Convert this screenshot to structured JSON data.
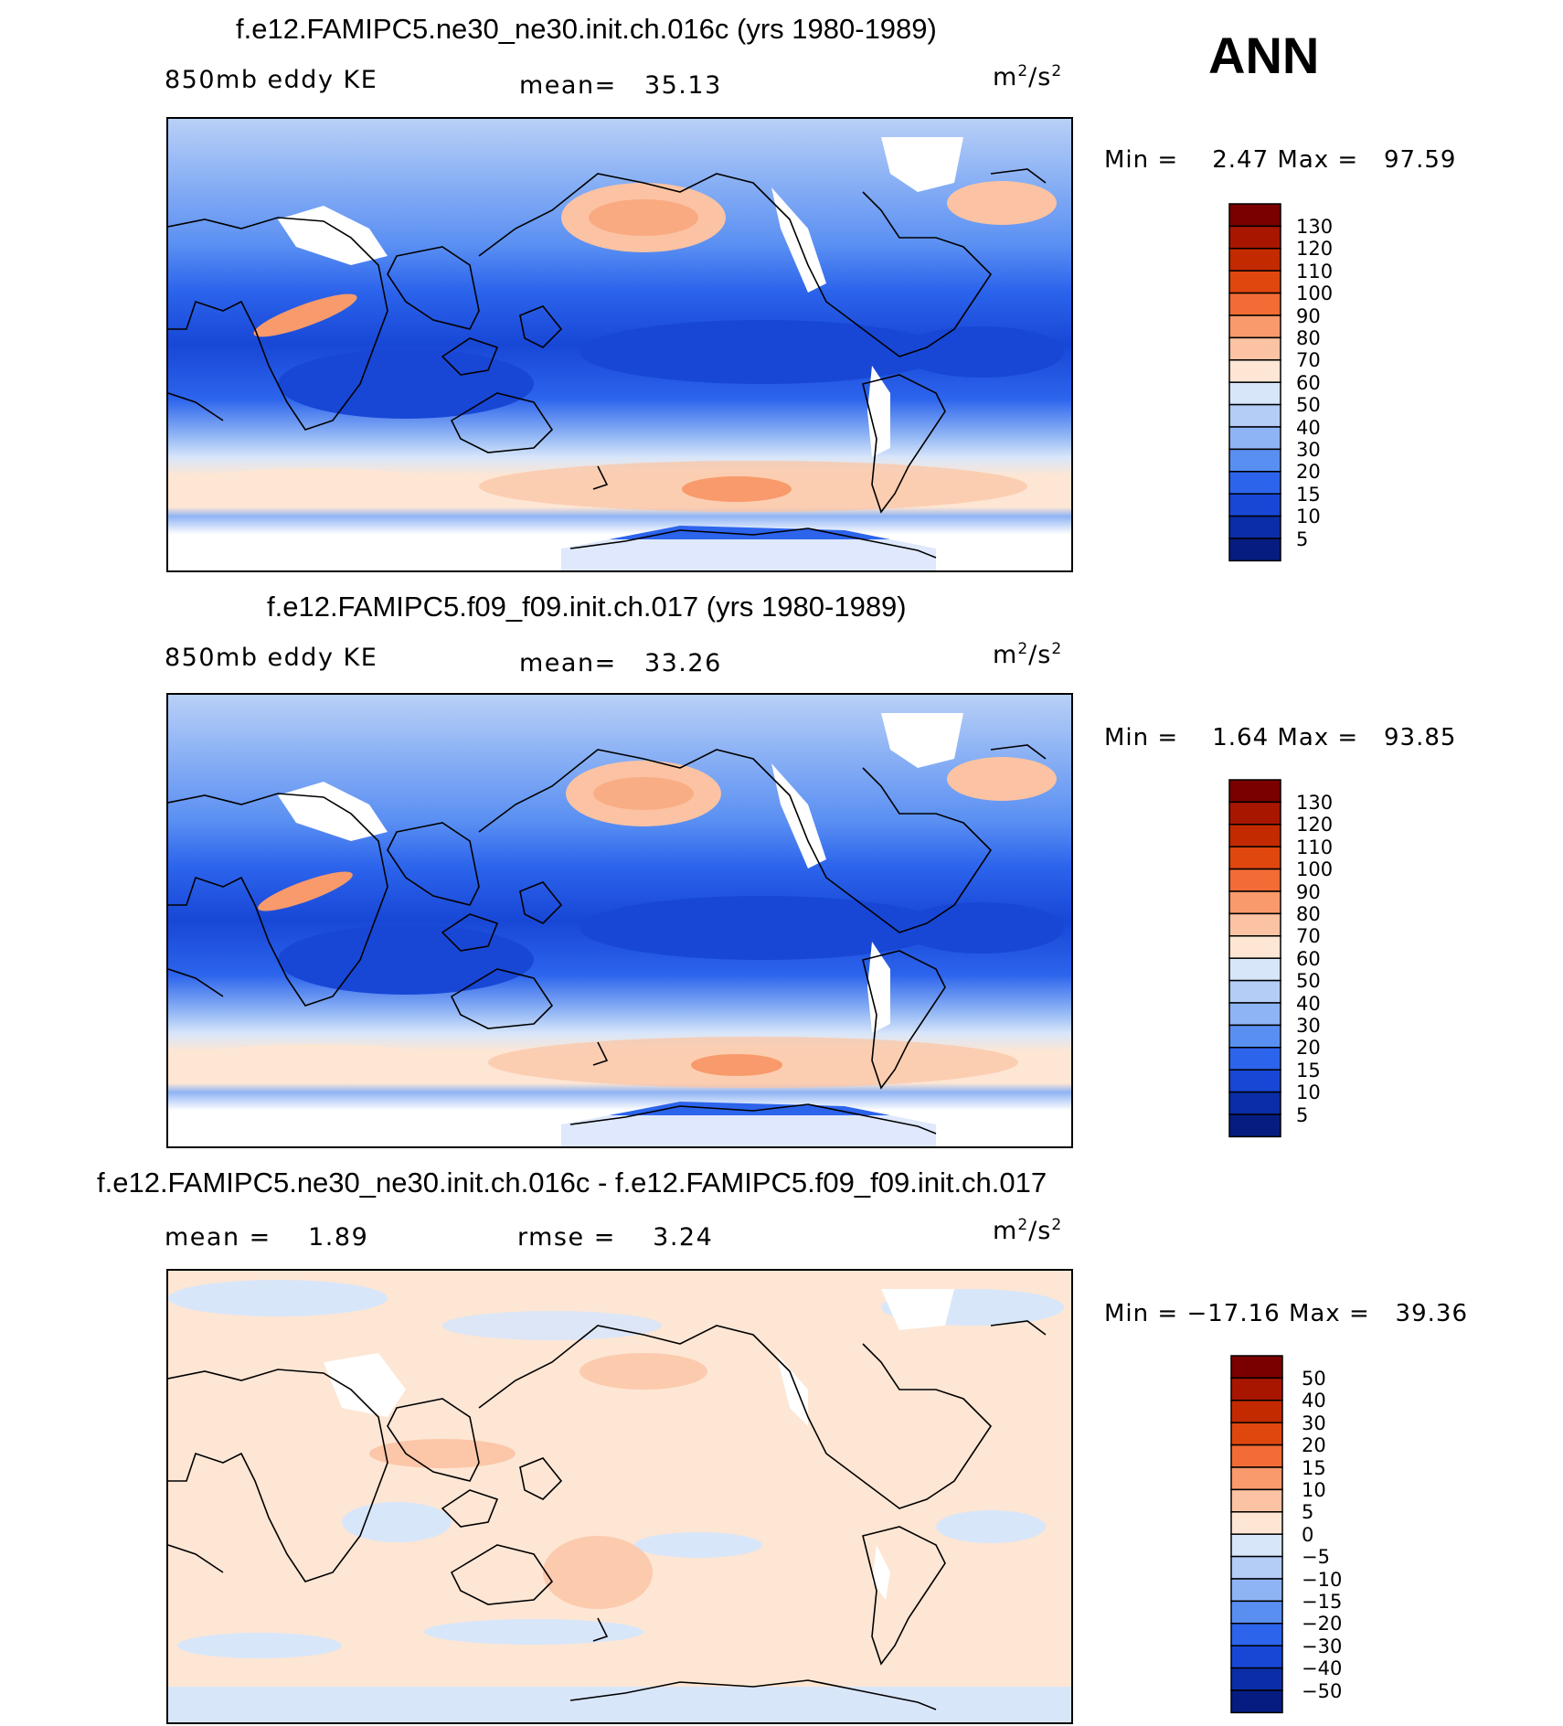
{
  "season": "ANN",
  "panels": [
    {
      "title": "f.e12.FAMIPC5.ne30_ne30.init.ch.016c (yrs 1980-1989)",
      "left_label": "850mb eddy KE",
      "stat_label": "mean=",
      "stat_value": "35.13",
      "units": "m",
      "units_sup1": "2",
      "units_mid": "/s",
      "units_sup2": "2",
      "min_label": "Min  =",
      "min_value": "2.47",
      "max_label": "Max  =",
      "max_value": "97.59",
      "colorbar_labels": [
        "130",
        "120",
        "110",
        "100",
        "90",
        "80",
        "70",
        "60",
        "50",
        "40",
        "30",
        "20",
        "15",
        "10",
        "5"
      ],
      "colorbar_colors": [
        "#7a0000",
        "#a81600",
        "#c42a00",
        "#e0470f",
        "#f36c35",
        "#f89a6b",
        "#fbc3a3",
        "#fde6d4",
        "#d8e6fa",
        "#b3cdf7",
        "#8fb4f5",
        "#5a8ff2",
        "#2c64ec",
        "#1847d6",
        "#0b2ea8",
        "#061c80"
      ]
    },
    {
      "title": "f.e12.FAMIPC5.f09_f09.init.ch.017 (yrs 1980-1989)",
      "left_label": "850mb eddy KE",
      "stat_label": "mean=",
      "stat_value": "33.26",
      "units": "m",
      "units_sup1": "2",
      "units_mid": "/s",
      "units_sup2": "2",
      "min_label": "Min  =",
      "min_value": "1.64",
      "max_label": "Max  =",
      "max_value": "93.85",
      "colorbar_labels": [
        "130",
        "120",
        "110",
        "100",
        "90",
        "80",
        "70",
        "60",
        "50",
        "40",
        "30",
        "20",
        "15",
        "10",
        "5"
      ],
      "colorbar_colors": [
        "#7a0000",
        "#a81600",
        "#c42a00",
        "#e0470f",
        "#f36c35",
        "#f89a6b",
        "#fbc3a3",
        "#fde6d4",
        "#d8e6fa",
        "#b3cdf7",
        "#8fb4f5",
        "#5a8ff2",
        "#2c64ec",
        "#1847d6",
        "#0b2ea8",
        "#061c80"
      ]
    },
    {
      "title": "f.e12.FAMIPC5.ne30_ne30.init.ch.016c - f.e12.FAMIPC5.f09_f09.init.ch.017",
      "left_label": "mean =",
      "left_value": "1.89",
      "stat_label": "rmse =",
      "stat_value": "3.24",
      "units": "m",
      "units_sup1": "2",
      "units_mid": "/s",
      "units_sup2": "2",
      "min_label": "Min  =",
      "min_value": "−17.16",
      "max_label": "Max  =",
      "max_value": "39.36",
      "colorbar_labels": [
        "50",
        "40",
        "30",
        "20",
        "15",
        "10",
        "5",
        "0",
        "−5",
        "−10",
        "−15",
        "−20",
        "−30",
        "−40",
        "−50"
      ],
      "colorbar_colors": [
        "#7a0000",
        "#a81600",
        "#c42a00",
        "#e0470f",
        "#f36c35",
        "#f89a6b",
        "#fbc3a3",
        "#fde6d4",
        "#d8e6fa",
        "#b3cdf7",
        "#8fb4f5",
        "#5a8ff2",
        "#2c64ec",
        "#1847d6",
        "#0b2ea8",
        "#061c80"
      ]
    }
  ]
}
